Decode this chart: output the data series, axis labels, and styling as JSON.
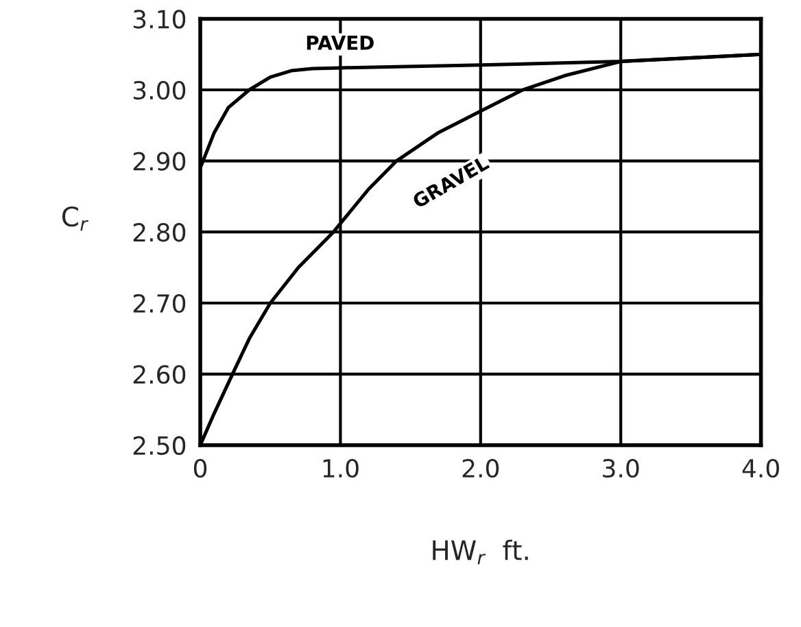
{
  "chart_data": {
    "type": "line",
    "xlabel": "HW$_{r}$  ft.",
    "ylabel": "C$_{r}$",
    "xlim": [
      0,
      4
    ],
    "ylim": [
      2.5,
      3.1
    ],
    "xticks": [
      0,
      {
        "value": 1,
        "label": "1.0"
      },
      {
        "value": 2,
        "label": "2.0"
      },
      {
        "value": 3,
        "label": "3.0"
      },
      {
        "value": 4,
        "label": "4.0"
      }
    ],
    "yticks": [
      {
        "value": 2.5,
        "label": "2.50"
      },
      {
        "value": 2.6,
        "label": "2.60"
      },
      {
        "value": 2.7,
        "label": "2.70"
      },
      {
        "value": 2.8,
        "label": "2.80"
      },
      {
        "value": 2.9,
        "label": "2.90"
      },
      {
        "value": 3.0,
        "label": "3.00"
      },
      {
        "value": 3.1,
        "label": "3.10"
      }
    ],
    "grid": true,
    "marker": "none",
    "line_style": "solid",
    "series": [
      {
        "name": "PAVED",
        "color": "#000000",
        "x": [
          0,
          0.1,
          0.2,
          0.35,
          0.5,
          0.65,
          0.8,
          1.0,
          2.0,
          3.0,
          4.0
        ],
        "values": [
          2.89,
          2.94,
          2.975,
          3.0,
          3.018,
          3.027,
          3.03,
          3.031,
          3.035,
          3.04,
          3.05
        ]
      },
      {
        "name": "GRAVEL",
        "color": "#000000",
        "x": [
          0,
          0.1,
          0.23,
          0.35,
          0.5,
          0.7,
          0.95,
          1.2,
          1.4,
          1.7,
          2.0,
          2.3,
          2.6,
          3.0,
          3.5,
          4.0
        ],
        "values": [
          2.5,
          2.545,
          2.6,
          2.65,
          2.7,
          2.75,
          2.8,
          2.86,
          2.9,
          2.94,
          2.97,
          3.0,
          3.02,
          3.04,
          3.045,
          3.05
        ]
      }
    ]
  }
}
